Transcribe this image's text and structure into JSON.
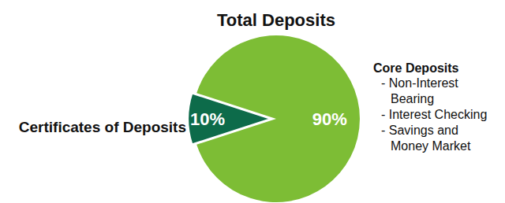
{
  "chart_data": {
    "type": "pie",
    "title": "Total Deposits",
    "categories": [
      "Certificates of Deposits",
      "Core Deposits"
    ],
    "values": [
      10,
      90
    ],
    "value_labels": [
      "10%",
      "90%"
    ],
    "colors": [
      "#0d6b4a",
      "#7dbd35"
    ],
    "data_labels": true,
    "annotations": [
      "- Non-Interest Bearing",
      "- Interest Checking",
      "- Savings and Money Market"
    ]
  }
}
